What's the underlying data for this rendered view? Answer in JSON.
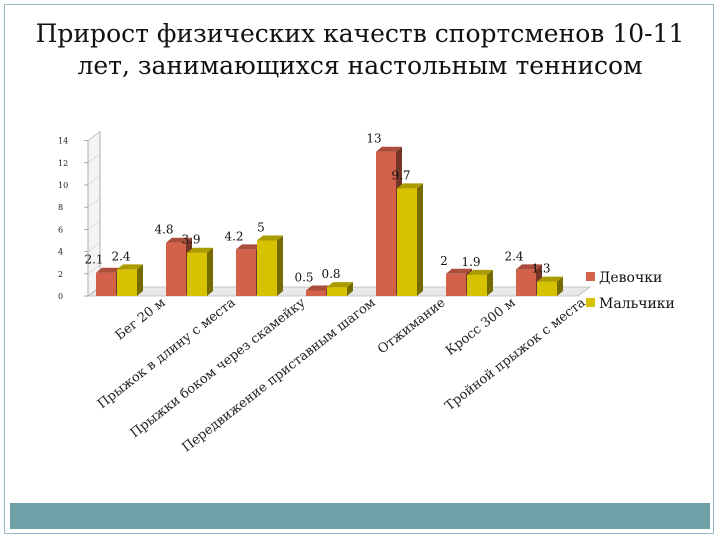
{
  "slide": {
    "title": "Прирост физических качеств спортсменов 10-11 лет, занимающихся настольным теннисом"
  },
  "colors": {
    "girls": "#d4624a",
    "boys": "#d6c200",
    "footer": "#6fa0a8"
  },
  "chart_data": {
    "type": "bar",
    "title": "",
    "xlabel": "",
    "ylabel": "",
    "ylim": [
      0,
      14
    ],
    "yticks": [
      "0",
      "2",
      "4",
      "6",
      "8",
      "10",
      "12",
      "14"
    ],
    "grid": false,
    "legend_position": "right",
    "categories": [
      "Бег 20 м",
      "Прыжок в длину с места",
      "Прыжки боком через скамейку",
      "Передвижение приставным шагом",
      "Отжимание",
      "Кросс 300 м",
      "Тройной прыжок с места"
    ],
    "series": [
      {
        "name": "Девочки",
        "values": [
          2.1,
          4.8,
          4.2,
          0.5,
          13,
          2,
          2.4
        ]
      },
      {
        "name": "Мальчики",
        "values": [
          2.4,
          3.9,
          5,
          0.8,
          9.7,
          1.9,
          1.3
        ]
      }
    ],
    "data_labels": [
      [
        "2.1",
        "4.8",
        "4.2",
        "0.5",
        "13",
        "2",
        "2.4"
      ],
      [
        "2.4",
        "3.9",
        "5",
        "0.8",
        "9.7",
        "1.9",
        "1.3"
      ]
    ]
  }
}
